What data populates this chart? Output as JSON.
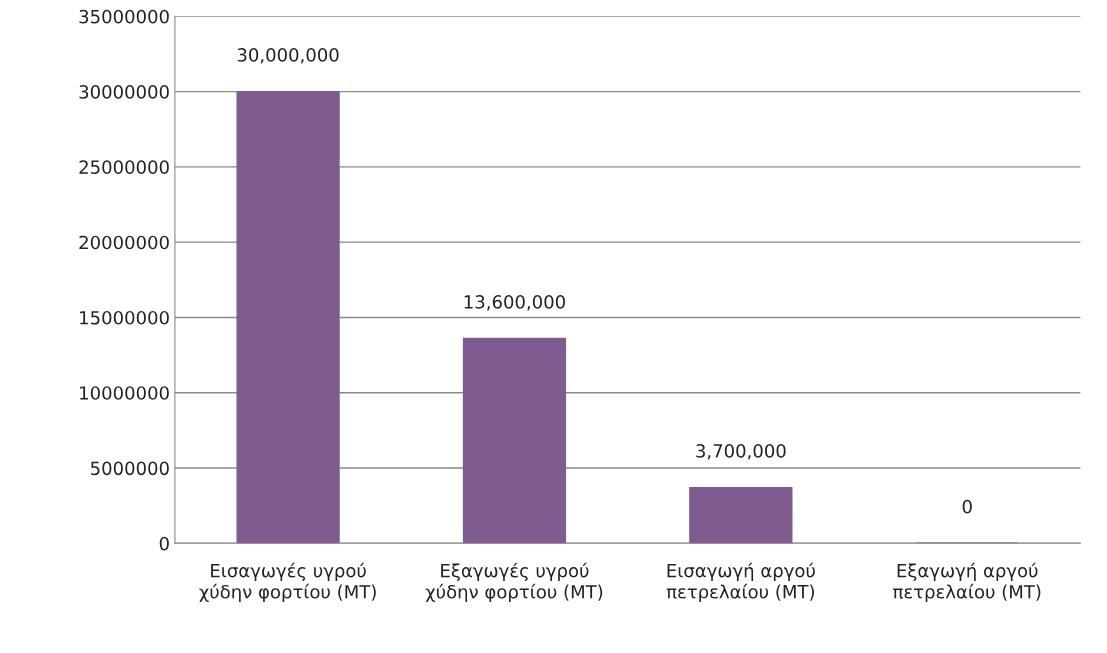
{
  "chart_data": {
    "type": "bar",
    "categories": [
      "Εισαγωγές υγρού\nχύδην φορτίου (MT)",
      "Εξαγωγές υγρού\nχύδην φορτίου (MT)",
      "Εισαγωγή αργού\nπετρελαίου (MT)",
      "Εξαγωγή αργού\nπετρελαίου (MT)"
    ],
    "values": [
      30000000,
      13600000,
      3700000,
      0
    ],
    "value_labels": [
      "30,000,000",
      "13,600,000",
      "3,700,000",
      "0"
    ],
    "color": "#7f5b8f",
    "ylim": [
      0,
      35000000
    ],
    "yticks": [
      0,
      5000000,
      10000000,
      15000000,
      20000000,
      25000000,
      30000000,
      35000000
    ],
    "grid": "y",
    "legend": false
  }
}
